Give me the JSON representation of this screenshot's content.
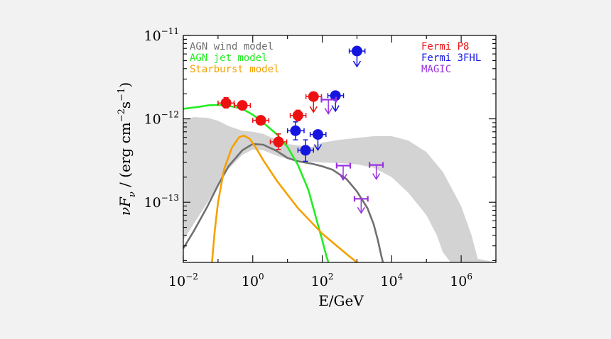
{
  "chart_data": {
    "type": "scatter",
    "xlabel": "E/GeV",
    "ylabel_parts": [
      "νF",
      "ν",
      " / (erg cm",
      "−2",
      "s",
      "−1",
      ")"
    ],
    "xscale": "log",
    "yscale": "log",
    "xlim": [
      0.01,
      10000000
    ],
    "ylim": [
      1.9e-14,
      1e-11
    ],
    "x_ticks": [
      {
        "base": "10",
        "exp": "−2",
        "value": 0.01
      },
      {
        "base": "10",
        "exp": "0",
        "value": 1
      },
      {
        "base": "10",
        "exp": "2",
        "value": 100
      },
      {
        "base": "10",
        "exp": "4",
        "value": 10000
      },
      {
        "base": "10",
        "exp": "6",
        "value": 1000000
      }
    ],
    "y_ticks": [
      {
        "base": "10",
        "exp": "−11",
        "value": 1e-11
      },
      {
        "base": "10",
        "exp": "−12",
        "value": 1e-12
      },
      {
        "base": "10",
        "exp": "−13",
        "value": 1e-13
      }
    ],
    "legend_left": [
      {
        "label": "AGN wind model",
        "color": "#707070"
      },
      {
        "label": "AGN jet model",
        "color": "#22ee22"
      },
      {
        "label": "Starburst model",
        "color": "#f5a000"
      }
    ],
    "legend_right": [
      {
        "label": "Fermi P8",
        "color": "#ee1111"
      },
      {
        "label": "Fermi 3FHL",
        "color": "#1515e0"
      },
      {
        "label": "MAGIC",
        "color": "#9933dd"
      }
    ],
    "band": {
      "color": "#d3d3d3",
      "upper": [
        [
          0.01,
          9.8e-13
        ],
        [
          0.02,
          1.05e-12
        ],
        [
          0.05,
          1.03e-12
        ],
        [
          0.1,
          9.5e-13
        ],
        [
          0.2,
          8.2e-13
        ],
        [
          0.5,
          7.2e-13
        ],
        [
          1,
          7e-13
        ],
        [
          2,
          6.6e-13
        ],
        [
          4,
          5.8e-13
        ],
        [
          10,
          5e-13
        ],
        [
          20,
          4.8e-13
        ],
        [
          50,
          4.6e-13
        ],
        [
          100,
          5.2e-13
        ],
        [
          300,
          5.6e-13
        ],
        [
          1000,
          5.9e-13
        ],
        [
          3000,
          6.2e-13
        ],
        [
          10000,
          6.2e-13
        ],
        [
          30000,
          5.5e-13
        ],
        [
          100000,
          4e-13
        ],
        [
          300000,
          2.3e-13
        ],
        [
          1000000,
          9e-14
        ],
        [
          2000000,
          4e-14
        ],
        [
          3000000,
          2.1e-14
        ],
        [
          10000000,
          1.9e-14
        ]
      ],
      "lower": [
        [
          0.01,
          3.5e-14
        ],
        [
          0.02,
          5.5e-14
        ],
        [
          0.05,
          1e-13
        ],
        [
          0.1,
          1.6e-13
        ],
        [
          0.2,
          2.5e-13
        ],
        [
          0.5,
          3.7e-13
        ],
        [
          1,
          4.3e-13
        ],
        [
          2,
          4.2e-13
        ],
        [
          5,
          3.6e-13
        ],
        [
          10,
          3.3e-13
        ],
        [
          30,
          3.1e-13
        ],
        [
          100,
          3e-13
        ],
        [
          300,
          2.95e-13
        ],
        [
          1000,
          2.85e-13
        ],
        [
          3000,
          2.6e-13
        ],
        [
          10000,
          2e-13
        ],
        [
          30000,
          1.3e-13
        ],
        [
          100000,
          7e-14
        ],
        [
          200000,
          4e-14
        ],
        [
          300000,
          2.5e-14
        ],
        [
          500000,
          1.9e-14
        ]
      ]
    },
    "series": [
      {
        "name": "AGN wind model",
        "color": "#707070",
        "points": [
          [
            0.01,
            2.8e-14
          ],
          [
            0.02,
            4.5e-14
          ],
          [
            0.05,
            9e-14
          ],
          [
            0.1,
            1.6e-13
          ],
          [
            0.2,
            2.7e-13
          ],
          [
            0.5,
            4.2e-13
          ],
          [
            1,
            5e-13
          ],
          [
            2,
            4.9e-13
          ],
          [
            5,
            4.1e-13
          ],
          [
            10,
            3.4e-13
          ],
          [
            20,
            3.1e-13
          ],
          [
            50,
            2.9e-13
          ],
          [
            100,
            2.7e-13
          ],
          [
            200,
            2.45e-13
          ],
          [
            500,
            1.9e-13
          ],
          [
            1000,
            1.35e-13
          ],
          [
            2000,
            8.5e-14
          ],
          [
            3000,
            5.5e-14
          ],
          [
            4000,
            3.5e-14
          ],
          [
            5000,
            2.3e-14
          ],
          [
            5600,
            1.9e-14
          ]
        ]
      },
      {
        "name": "AGN jet model",
        "color": "#22ee22",
        "points": [
          [
            0.01,
            1.32e-12
          ],
          [
            0.03,
            1.4e-12
          ],
          [
            0.05,
            1.45e-12
          ],
          [
            0.1,
            1.47e-12
          ],
          [
            0.2,
            1.44e-12
          ],
          [
            0.5,
            1.32e-12
          ],
          [
            1,
            1.12e-12
          ],
          [
            2,
            9e-13
          ],
          [
            5,
            6.5e-13
          ],
          [
            10,
            4.6e-13
          ],
          [
            20,
            2.8e-13
          ],
          [
            40,
            1.4e-13
          ],
          [
            70,
            6e-14
          ],
          [
            100,
            3.5e-14
          ],
          [
            130,
            2.3e-14
          ],
          [
            150,
            1.9e-14
          ]
        ]
      },
      {
        "name": "Starburst model",
        "color": "#f5a000",
        "points": [
          [
            0.067,
            1.9e-14
          ],
          [
            0.08,
            4.5e-14
          ],
          [
            0.1,
            1e-13
          ],
          [
            0.15,
            2.5e-13
          ],
          [
            0.25,
            4.5e-13
          ],
          [
            0.4,
            6e-13
          ],
          [
            0.55,
            6.3e-13
          ],
          [
            0.8,
            5.8e-13
          ],
          [
            1.2,
            4.6e-13
          ],
          [
            2,
            3.2e-13
          ],
          [
            5,
            1.8e-13
          ],
          [
            20,
            8.5e-14
          ],
          [
            100,
            4.2e-14
          ],
          [
            500,
            2.4e-14
          ],
          [
            1000,
            1.9e-14
          ]
        ]
      }
    ],
    "fermi_p8": [
      {
        "x": 0.17,
        "y": 1.55e-12,
        "xerr": [
          0.1,
          0.29
        ],
        "yerr": [
          1.35e-12,
          1.8e-12
        ]
      },
      {
        "x": 0.5,
        "y": 1.45e-12,
        "xerr": [
          0.3,
          0.85
        ],
        "yerr": [
          1.32e-12,
          1.6e-12
        ]
      },
      {
        "x": 1.7,
        "y": 9.6e-13,
        "xerr": [
          1.0,
          2.9
        ],
        "yerr": [
          8.8e-13,
          1.05e-12
        ]
      },
      {
        "x": 5.5,
        "y": 5.3e-13,
        "xerr": [
          3.2,
          9.5
        ],
        "yerr": [
          4.3e-13,
          6.6e-13
        ]
      },
      {
        "x": 20,
        "y": 1.1e-12,
        "xerr": [
          12,
          34
        ],
        "yerr": [
          9.5e-13,
          1.27e-12
        ]
      },
      {
        "x": 56,
        "y": 1.85e-12,
        "xerr": [
          34,
          95
        ],
        "ul": true
      }
    ],
    "fermi_3fhl": [
      {
        "x": 17,
        "y": 7.2e-13,
        "xerr": [
          10,
          30
        ],
        "yerr": [
          5.6e-13,
          9.2e-13
        ]
      },
      {
        "x": 33,
        "y": 4.2e-13,
        "xerr": [
          20,
          56
        ],
        "yerr": [
          3.1e-13,
          5.6e-13
        ]
      },
      {
        "x": 75,
        "y": 6.5e-13,
        "xerr": [
          45,
          128
        ],
        "ul": true
      },
      {
        "x": 240,
        "y": 1.9e-12,
        "xerr": [
          145,
          410
        ],
        "ul": true
      },
      {
        "x": 1000,
        "y": 6.5e-12,
        "xerr": [
          600,
          1700
        ],
        "ul": true
      }
    ],
    "magic_ul": [
      {
        "x": 150,
        "y": 1.7e-12,
        "xerr": [
          95,
          250
        ]
      },
      {
        "x": 400,
        "y": 2.75e-13,
        "xerr": [
          260,
          640
        ]
      },
      {
        "x": 1320,
        "y": 1.1e-13,
        "xerr": [
          850,
          2050
        ]
      },
      {
        "x": 3600,
        "y": 2.8e-13,
        "xerr": [
          2300,
          5600
        ]
      }
    ]
  }
}
